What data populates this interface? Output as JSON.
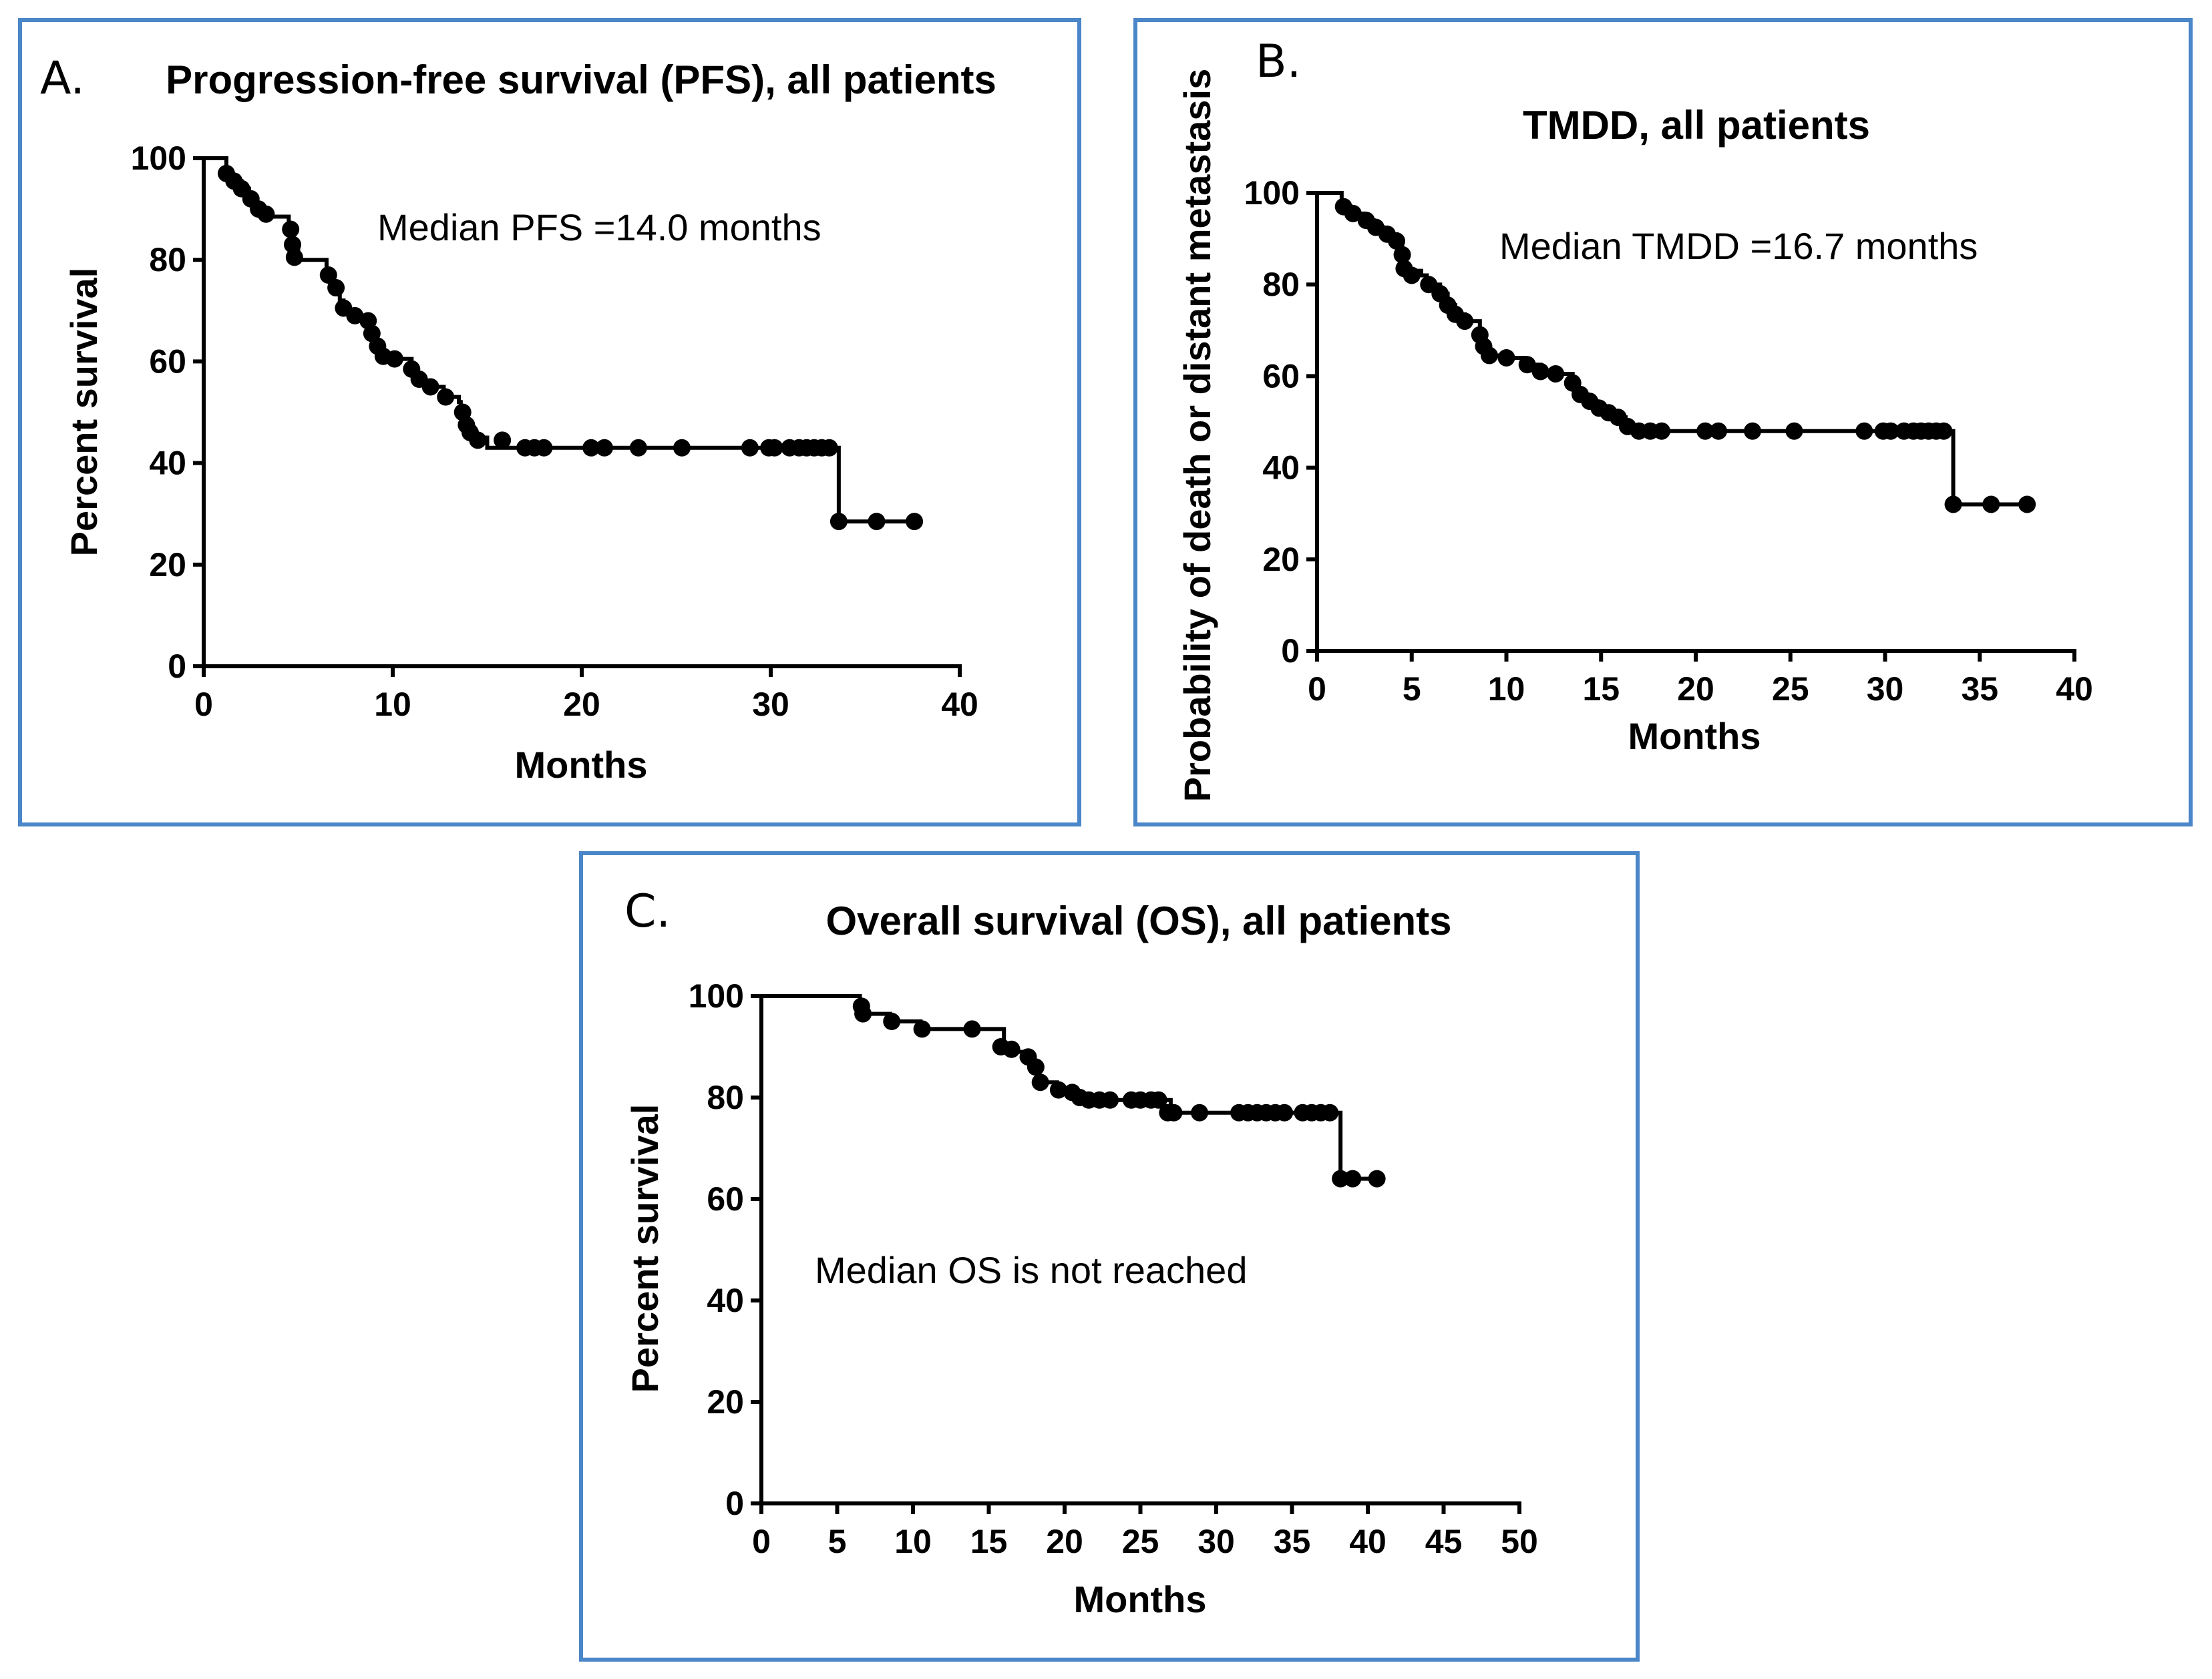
{
  "chart_data": [
    {
      "type": "kaplan-meier",
      "panel_label": "A.",
      "title": "Progression-free survival (PFS), all patients",
      "xlabel": "Months",
      "ylabel": "Percent survival",
      "xlim": [
        0,
        40
      ],
      "ylim": [
        0,
        100
      ],
      "xticks": [
        0,
        10,
        20,
        30,
        40
      ],
      "yticks": [
        0,
        20,
        40,
        60,
        80,
        100
      ],
      "annotation": "Median PFS =14.0 months",
      "steps": [
        [
          0,
          100
        ],
        [
          1.2,
          100
        ],
        [
          1.2,
          97
        ],
        [
          1.5,
          95.5
        ],
        [
          2.0,
          94
        ],
        [
          2.4,
          92
        ],
        [
          2.8,
          90
        ],
        [
          3.2,
          88.5
        ],
        [
          4.5,
          88.5
        ],
        [
          4.5,
          86
        ],
        [
          4.7,
          83
        ],
        [
          5.0,
          80
        ],
        [
          6.5,
          80
        ],
        [
          6.5,
          77
        ],
        [
          6.9,
          74.5
        ],
        [
          7.2,
          72
        ],
        [
          7.4,
          70
        ],
        [
          8.0,
          69
        ],
        [
          8.7,
          68
        ],
        [
          8.9,
          65.5
        ],
        [
          9.2,
          63
        ],
        [
          9.4,
          61
        ],
        [
          10.0,
          60.5
        ],
        [
          11.0,
          58
        ],
        [
          11.3,
          56
        ],
        [
          12.0,
          55
        ],
        [
          12.7,
          53
        ],
        [
          13.5,
          52
        ],
        [
          13.6,
          49
        ],
        [
          13.8,
          47
        ],
        [
          14.3,
          45
        ],
        [
          15,
          45
        ],
        [
          15,
          43
        ],
        [
          33.6,
          43
        ],
        [
          33.6,
          28.5
        ],
        [
          37.5,
          28.5
        ]
      ],
      "censored": [
        [
          1.2,
          97
        ],
        [
          1.6,
          95.5
        ],
        [
          2.0,
          94
        ],
        [
          2.5,
          92
        ],
        [
          2.9,
          90
        ],
        [
          3.3,
          89
        ],
        [
          4.6,
          86
        ],
        [
          4.7,
          83
        ],
        [
          4.8,
          80.5
        ],
        [
          6.6,
          77
        ],
        [
          7.0,
          74.5
        ],
        [
          7.4,
          70.5
        ],
        [
          8.0,
          69
        ],
        [
          8.7,
          68
        ],
        [
          8.9,
          65.5
        ],
        [
          9.2,
          63
        ],
        [
          9.5,
          61
        ],
        [
          10.1,
          60.5
        ],
        [
          11.0,
          58.5
        ],
        [
          11.4,
          56.5
        ],
        [
          12.0,
          55
        ],
        [
          12.8,
          53
        ],
        [
          13.7,
          50
        ],
        [
          13.9,
          47.5
        ],
        [
          14.1,
          46
        ],
        [
          14.5,
          44.5
        ],
        [
          15.8,
          44.5
        ],
        [
          17.0,
          43
        ],
        [
          17.5,
          43
        ],
        [
          18.0,
          43
        ],
        [
          20.5,
          43
        ],
        [
          21.2,
          43
        ],
        [
          23.0,
          43
        ],
        [
          25.3,
          43
        ],
        [
          28.9,
          43
        ],
        [
          29.9,
          43
        ],
        [
          30.2,
          43
        ],
        [
          31.0,
          43
        ],
        [
          31.5,
          43
        ],
        [
          31.9,
          43
        ],
        [
          32.3,
          43
        ],
        [
          32.7,
          43
        ],
        [
          33.1,
          43
        ],
        [
          33.6,
          28.5
        ],
        [
          35.6,
          28.5
        ],
        [
          37.6,
          28.5
        ]
      ]
    },
    {
      "type": "kaplan-meier",
      "panel_label": "B.",
      "title": "TMDD, all patients",
      "xlabel": "Months",
      "ylabel": "Probability of death or distant metastasis",
      "xlim": [
        0,
        40
      ],
      "ylim": [
        0,
        100
      ],
      "xticks": [
        0,
        5,
        10,
        15,
        20,
        25,
        30,
        35,
        40
      ],
      "yticks": [
        0,
        20,
        40,
        60,
        80,
        100
      ],
      "annotation": "Median TMDD =16.7 months",
      "steps": [
        [
          0,
          100
        ],
        [
          1.3,
          100
        ],
        [
          1.3,
          97
        ],
        [
          1.8,
          95.5
        ],
        [
          2.5,
          94
        ],
        [
          3.0,
          92.5
        ],
        [
          3.5,
          91
        ],
        [
          4.2,
          89
        ],
        [
          4.5,
          86
        ],
        [
          4.6,
          83
        ],
        [
          5.5,
          82
        ],
        [
          5.8,
          80
        ],
        [
          6.5,
          78
        ],
        [
          6.9,
          75.5
        ],
        [
          7.3,
          73.5
        ],
        [
          7.8,
          72
        ],
        [
          8.6,
          72
        ],
        [
          8.6,
          69
        ],
        [
          8.8,
          66.5
        ],
        [
          9.1,
          64.5
        ],
        [
          10.0,
          64
        ],
        [
          11.0,
          62.5
        ],
        [
          11.8,
          61
        ],
        [
          12.5,
          60.5
        ],
        [
          13.5,
          58
        ],
        [
          13.8,
          56
        ],
        [
          14.3,
          54.5
        ],
        [
          14.8,
          53
        ],
        [
          15.3,
          52
        ],
        [
          15.8,
          51
        ],
        [
          16.3,
          49
        ],
        [
          16.7,
          48
        ],
        [
          33.6,
          48
        ],
        [
          33.6,
          32
        ],
        [
          37.5,
          32
        ]
      ],
      "censored": [
        [
          1.4,
          97
        ],
        [
          1.9,
          95.5
        ],
        [
          2.6,
          94
        ],
        [
          3.1,
          92.5
        ],
        [
          3.7,
          91
        ],
        [
          4.2,
          89.5
        ],
        [
          4.5,
          86.5
        ],
        [
          4.6,
          83.5
        ],
        [
          5.0,
          82
        ],
        [
          5.9,
          80
        ],
        [
          6.5,
          78
        ],
        [
          6.9,
          75.5
        ],
        [
          7.3,
          73.5
        ],
        [
          7.8,
          72
        ],
        [
          8.6,
          69
        ],
        [
          8.8,
          66.5
        ],
        [
          9.1,
          64.5
        ],
        [
          10.0,
          64
        ],
        [
          11.1,
          62.5
        ],
        [
          11.8,
          61
        ],
        [
          12.6,
          60.5
        ],
        [
          13.5,
          58.5
        ],
        [
          13.9,
          56
        ],
        [
          14.4,
          54.5
        ],
        [
          14.9,
          53
        ],
        [
          15.4,
          52
        ],
        [
          15.9,
          51
        ],
        [
          16.4,
          49
        ],
        [
          17.0,
          48
        ],
        [
          17.6,
          48
        ],
        [
          18.2,
          48
        ],
        [
          20.5,
          48
        ],
        [
          21.2,
          48
        ],
        [
          23.0,
          48
        ],
        [
          25.2,
          48
        ],
        [
          28.9,
          48
        ],
        [
          29.9,
          48
        ],
        [
          30.3,
          48
        ],
        [
          31.0,
          48
        ],
        [
          31.5,
          48
        ],
        [
          31.9,
          48
        ],
        [
          32.3,
          48
        ],
        [
          32.7,
          48
        ],
        [
          33.1,
          48
        ],
        [
          33.6,
          32
        ],
        [
          35.6,
          32
        ],
        [
          37.5,
          32
        ]
      ]
    },
    {
      "type": "kaplan-meier",
      "panel_label": "C.",
      "title": "Overall survival (OS), all patients",
      "xlabel": "Months",
      "ylabel": "Percent survival",
      "xlim": [
        0,
        50
      ],
      "ylim": [
        0,
        100
      ],
      "xticks": [
        0,
        5,
        10,
        15,
        20,
        25,
        30,
        35,
        40,
        45,
        50
      ],
      "yticks": [
        0,
        20,
        40,
        60,
        80,
        100
      ],
      "annotation": "Median OS is not reached",
      "steps": [
        [
          0,
          100
        ],
        [
          6.5,
          100
        ],
        [
          6.5,
          98
        ],
        [
          6.7,
          96.5
        ],
        [
          8.5,
          95
        ],
        [
          10.5,
          93.5
        ],
        [
          16.0,
          93.5
        ],
        [
          16.0,
          90
        ],
        [
          16.5,
          89
        ],
        [
          17.8,
          88
        ],
        [
          18.0,
          86
        ],
        [
          18.2,
          83
        ],
        [
          19.5,
          81.5
        ],
        [
          20.8,
          80
        ],
        [
          21.5,
          79.5
        ],
        [
          27.0,
          79.5
        ],
        [
          27.0,
          77
        ],
        [
          38.2,
          77
        ],
        [
          38.2,
          64
        ],
        [
          40.7,
          64
        ]
      ],
      "censored": [
        [
          6.6,
          98
        ],
        [
          6.7,
          96.5
        ],
        [
          8.6,
          95
        ],
        [
          10.6,
          93.5
        ],
        [
          13.9,
          93.5
        ],
        [
          15.8,
          90
        ],
        [
          16.5,
          89.5
        ],
        [
          17.6,
          88
        ],
        [
          18.1,
          86
        ],
        [
          18.4,
          83
        ],
        [
          19.6,
          81.5
        ],
        [
          20.5,
          81
        ],
        [
          21.0,
          80
        ],
        [
          21.6,
          79.5
        ],
        [
          22.3,
          79.5
        ],
        [
          23.0,
          79.5
        ],
        [
          24.4,
          79.5
        ],
        [
          25.0,
          79.5
        ],
        [
          25.7,
          79.5
        ],
        [
          26.2,
          79.5
        ],
        [
          26.8,
          77
        ],
        [
          27.2,
          77
        ],
        [
          28.9,
          77
        ],
        [
          31.5,
          77
        ],
        [
          32.1,
          77
        ],
        [
          32.7,
          77
        ],
        [
          33.3,
          77
        ],
        [
          33.9,
          77
        ],
        [
          34.5,
          77
        ],
        [
          35.7,
          77
        ],
        [
          36.3,
          77
        ],
        [
          36.9,
          77
        ],
        [
          37.5,
          77
        ],
        [
          38.2,
          64
        ],
        [
          39.0,
          64
        ],
        [
          40.6,
          64
        ]
      ]
    }
  ]
}
